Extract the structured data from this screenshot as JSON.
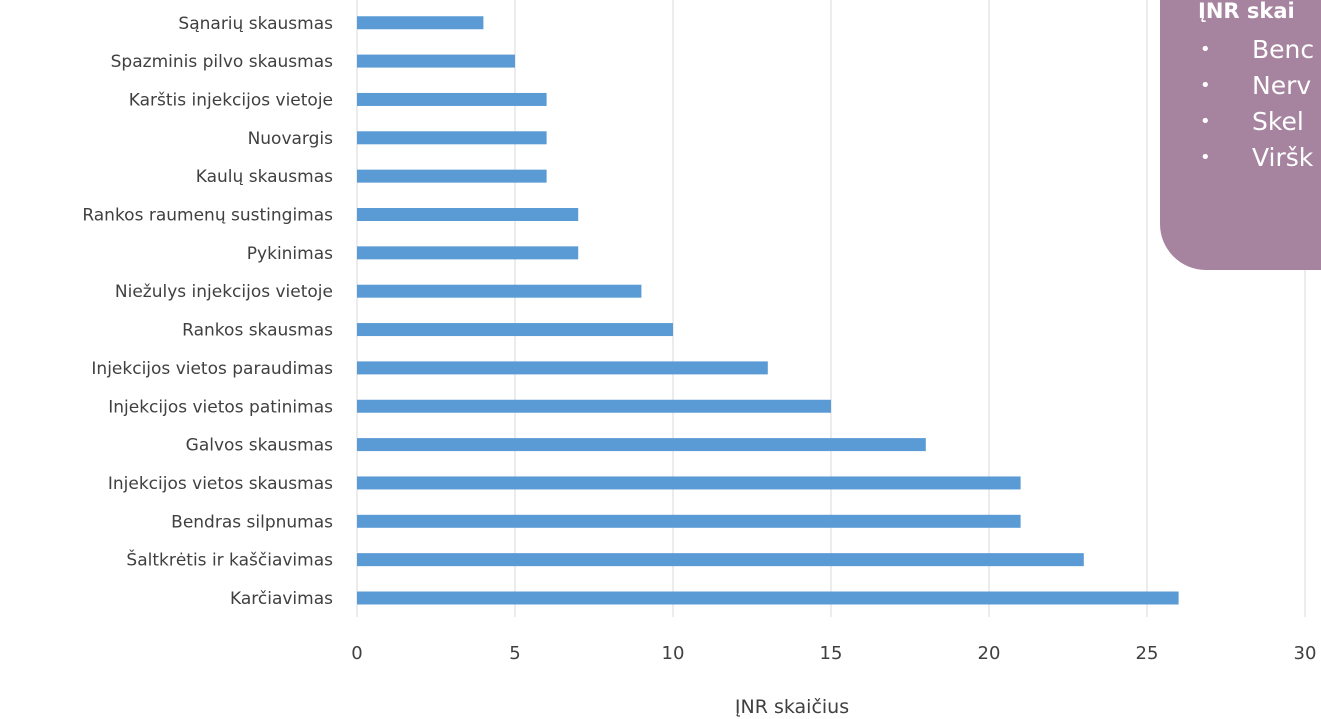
{
  "chart_data": {
    "type": "bar",
    "orientation": "horizontal",
    "categories": [
      "Karčiavimas",
      "Šaltkrėtis ir kaščiavimas",
      "Bendras silpnumas",
      "Injekcijos vietos skausmas",
      "Galvos skausmas",
      "Injekcijos vietos patinimas",
      "Injekcijos vietos paraudimas",
      "Rankos skausmas",
      "Niežulys injekcijos vietoje",
      "Pykinimas",
      "Rankos raumenų sustingimas",
      "Kaulų skausmas",
      "Nuovargis",
      "Karštis injekcijos vietoje",
      "Spazminis pilvo skausmas",
      "Sąnarių skausmas"
    ],
    "values": [
      26,
      23,
      21,
      21,
      18,
      15,
      13,
      10,
      9,
      7,
      7,
      6,
      6,
      6,
      5,
      4
    ],
    "xlabel": "ĮNR skaičius",
    "xlim": [
      0,
      30
    ],
    "xticks": [
      "0",
      "5",
      "10",
      "15",
      "20",
      "25",
      "30"
    ],
    "grid": "vertical",
    "bar_color": "#5b9bd5"
  },
  "callout": {
    "title": "ĮNR skai",
    "items": [
      "Benc",
      "Nerv",
      "Skel",
      "Viršk"
    ],
    "bullet": "•",
    "background": "#a6849f"
  }
}
